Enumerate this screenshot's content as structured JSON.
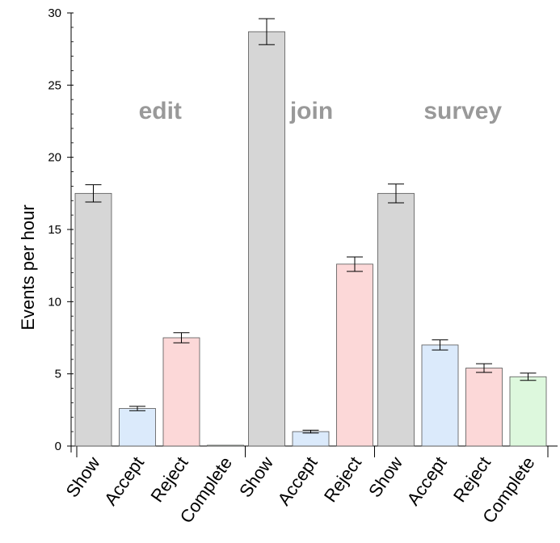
{
  "chart_data": {
    "type": "bar",
    "ylabel": "Events per hour",
    "ylim": [
      0,
      30
    ],
    "yticks": [
      0,
      5,
      10,
      15,
      20,
      25,
      30
    ],
    "grid": false,
    "colors": {
      "Show": "#d6d6d6",
      "Accept": "#dbeafb",
      "Reject": "#fcd8d8",
      "Complete": "#ddf8dd"
    },
    "groups": [
      {
        "name": "edit",
        "bars": [
          {
            "category": "Show",
            "value": 17.5,
            "error": 0.6
          },
          {
            "category": "Accept",
            "value": 2.6,
            "error": 0.15
          },
          {
            "category": "Reject",
            "value": 7.5,
            "error": 0.35
          },
          {
            "category": "Complete",
            "value": 0.05,
            "error": 0.0
          }
        ]
      },
      {
        "name": "join",
        "bars": [
          {
            "category": "Show",
            "value": 28.7,
            "error": 0.9
          },
          {
            "category": "Accept",
            "value": 1.0,
            "error": 0.1
          },
          {
            "category": "Reject",
            "value": 12.6,
            "error": 0.5
          }
        ]
      },
      {
        "name": "survey",
        "bars": [
          {
            "category": "Show",
            "value": 17.5,
            "error": 0.65
          },
          {
            "category": "Accept",
            "value": 7.0,
            "error": 0.35
          },
          {
            "category": "Reject",
            "value": 5.4,
            "error": 0.3
          },
          {
            "category": "Complete",
            "value": 4.8,
            "error": 0.25
          }
        ]
      }
    ]
  }
}
